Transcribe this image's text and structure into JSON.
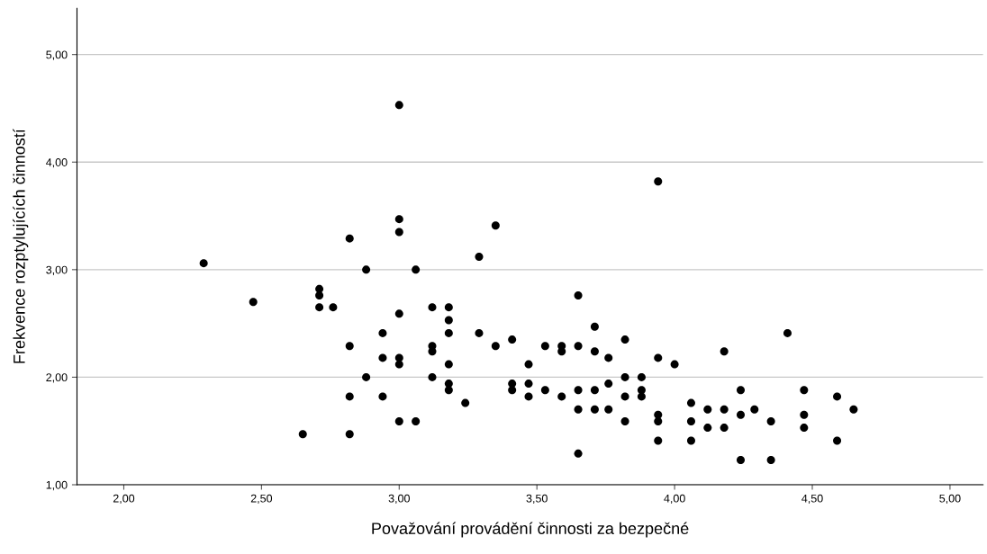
{
  "chart_data": {
    "type": "scatter",
    "xlabel": "Považování provádění činnosti za bezpečné",
    "ylabel": "Frekvence rozptylujících činností",
    "x": [
      2.29,
      2.47,
      2.65,
      2.71,
      2.71,
      2.71,
      2.76,
      2.82,
      2.82,
      2.82,
      2.82,
      2.88,
      2.88,
      2.94,
      2.94,
      2.94,
      3.0,
      3.0,
      3.0,
      3.0,
      3.0,
      3.0,
      3.0,
      3.06,
      3.06,
      3.12,
      3.12,
      3.12,
      3.12,
      3.18,
      3.18,
      3.18,
      3.18,
      3.18,
      3.18,
      3.24,
      3.29,
      3.29,
      3.35,
      3.35,
      3.41,
      3.41,
      3.41,
      3.47,
      3.47,
      3.47,
      3.53,
      3.53,
      3.59,
      3.59,
      3.59,
      3.65,
      3.65,
      3.65,
      3.65,
      3.65,
      3.71,
      3.71,
      3.71,
      3.71,
      3.76,
      3.76,
      3.76,
      3.82,
      3.82,
      3.82,
      3.82,
      3.88,
      3.88,
      3.88,
      3.94,
      3.94,
      3.94,
      3.94,
      3.94,
      4.0,
      4.06,
      4.06,
      4.06,
      4.12,
      4.12,
      4.18,
      4.18,
      4.18,
      4.24,
      4.24,
      4.24,
      4.29,
      4.35,
      4.35,
      4.41,
      4.47,
      4.47,
      4.47,
      4.59,
      4.59,
      4.65
    ],
    "values": [
      3.06,
      2.7,
      1.47,
      2.82,
      2.76,
      2.65,
      2.65,
      3.29,
      2.29,
      1.82,
      1.47,
      3.0,
      2.0,
      2.41,
      2.18,
      1.82,
      4.53,
      3.47,
      3.35,
      2.59,
      2.18,
      2.12,
      1.59,
      3.0,
      1.59,
      2.65,
      2.29,
      2.24,
      2.0,
      2.65,
      2.53,
      2.41,
      2.12,
      1.94,
      1.88,
      1.76,
      3.12,
      2.41,
      3.41,
      2.29,
      2.35,
      1.94,
      1.88,
      2.12,
      1.94,
      1.82,
      2.29,
      1.88,
      2.29,
      2.24,
      1.82,
      2.76,
      2.29,
      1.88,
      1.7,
      1.29,
      2.47,
      2.24,
      1.88,
      1.7,
      2.18,
      1.94,
      1.7,
      2.35,
      2.0,
      1.82,
      1.59,
      2.0,
      1.88,
      1.82,
      3.82,
      2.18,
      1.65,
      1.59,
      1.41,
      2.12,
      1.76,
      1.59,
      1.41,
      1.7,
      1.53,
      2.24,
      1.7,
      1.53,
      1.88,
      1.65,
      1.23,
      1.7,
      1.59,
      1.23,
      2.41,
      1.88,
      1.65,
      1.53,
      1.82,
      1.41,
      1.7
    ],
    "color": "#000000",
    "marker": "circle",
    "grid": "y",
    "xlim": [
      1.83,
      5.12
    ],
    "ylim": [
      1.0,
      5.43
    ],
    "xticks": [
      {
        "value": 2.0,
        "label": "2,00"
      },
      {
        "value": 2.5,
        "label": "2,50"
      },
      {
        "value": 3.0,
        "label": "3,00"
      },
      {
        "value": 3.5,
        "label": "3,50"
      },
      {
        "value": 4.0,
        "label": "4,00"
      },
      {
        "value": 4.5,
        "label": "4,50"
      },
      {
        "value": 5.0,
        "label": "5,00"
      }
    ],
    "yticks": [
      {
        "value": 1.0,
        "label": "1,00"
      },
      {
        "value": 2.0,
        "label": "2,00"
      },
      {
        "value": 3.0,
        "label": "3,00"
      },
      {
        "value": 4.0,
        "label": "4,00"
      },
      {
        "value": 5.0,
        "label": "5,00"
      }
    ]
  }
}
